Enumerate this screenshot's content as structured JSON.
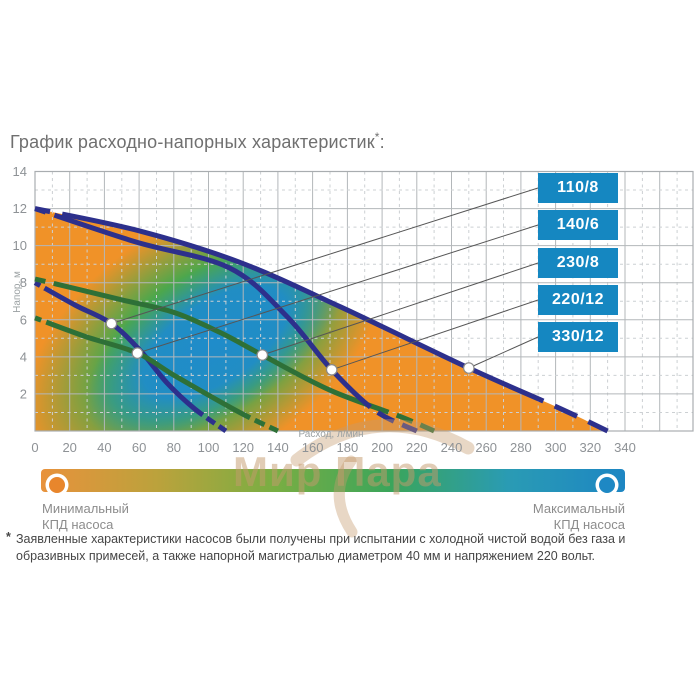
{
  "title": {
    "text": "График расходно-напорных характеристик",
    "sup": "*",
    "colon": ":"
  },
  "chart_data": {
    "type": "line",
    "xlabel": "Расход, л/мин",
    "ylabel": "Напор, м",
    "xlim": [
      0,
      380
    ],
    "ylim": [
      0,
      14
    ],
    "x_ticks": [
      0,
      20,
      40,
      60,
      80,
      100,
      120,
      140,
      160,
      180,
      200,
      220,
      240,
      260,
      280,
      300,
      320,
      340
    ],
    "y_ticks": [
      0,
      2,
      4,
      6,
      8,
      10,
      12,
      14
    ],
    "x_minor_step": 10,
    "y_minor_step": 1,
    "grid": "major solid, minor dashed",
    "legend_position": "right boxes with leader lines to marked points",
    "series": [
      {
        "name": "110/8",
        "color": "#2d308c",
        "points": [
          [
            0,
            8
          ],
          [
            23,
            6.8
          ],
          [
            44,
            5.8
          ],
          [
            61,
            4.3
          ],
          [
            76,
            2.6
          ],
          [
            92,
            1.2
          ],
          [
            110,
            0
          ]
        ],
        "marker": [
          44,
          5.8
        ]
      },
      {
        "name": "140/6",
        "color": "#2e7037",
        "points": [
          [
            0,
            6.1
          ],
          [
            29,
            5.1
          ],
          [
            59,
            4.2
          ],
          [
            82,
            2.9
          ],
          [
            118,
            1.0
          ],
          [
            140,
            0
          ]
        ],
        "marker": [
          59,
          4.2
        ]
      },
      {
        "name": "230/8",
        "color": "#2e7037",
        "points": [
          [
            0,
            8.2
          ],
          [
            49,
            7.1
          ],
          [
            80,
            6.4
          ],
          [
            107,
            5.3
          ],
          [
            131,
            4.1
          ],
          [
            170,
            2.2
          ],
          [
            210,
            0.8
          ],
          [
            230,
            0
          ]
        ],
        "marker": [
          131,
          4.1
        ]
      },
      {
        "name": "220/12",
        "color": "#2d308c",
        "points": [
          [
            0,
            12
          ],
          [
            58,
            10.2
          ],
          [
            112,
            8.8
          ],
          [
            145,
            6.2
          ],
          [
            171,
            3.3
          ],
          [
            196,
            1.1
          ],
          [
            220,
            0
          ]
        ],
        "marker": [
          171,
          3.3
        ]
      },
      {
        "name": "330/12",
        "color": "#2d308c",
        "envelope": true,
        "points": [
          [
            0,
            12
          ],
          [
            60,
            10.8
          ],
          [
            118,
            9.1
          ],
          [
            176,
            6.7
          ],
          [
            250,
            3.4
          ],
          [
            303,
            1.2
          ],
          [
            330,
            0
          ]
        ],
        "marker": [
          250,
          3.4
        ]
      }
    ]
  },
  "efficiency_bar": {
    "min_label": [
      "Минимальный",
      "КПД насоса"
    ],
    "max_label": [
      "Максимальный",
      "КПД насоса"
    ],
    "gradient": [
      "#e8923c",
      "#bba23c",
      "#79ae43",
      "#3aa55b",
      "#2a9bb4",
      "#1d86c3"
    ]
  },
  "watermark": {
    "text": "Мир Пара"
  },
  "footnote": {
    "marker": "*",
    "text": "Заявленные характеристики насосов были получены при испытании с холодной чистой водой без газа и образивных примесей, а также напорной магистралью диаметром 40 мм и напряжением 220 вольт."
  },
  "colors": {
    "badge": "#1587c1",
    "navy_curve": "#2d308c",
    "green_curve": "#2e7037",
    "fill_orange": "#f09228",
    "fill_green": "#44a84e",
    "fill_blue": "#1f8cca",
    "grid_major": "#b3b7ba",
    "grid_minor": "#ccd0d3",
    "border": "#a9adb0",
    "leader_line": "#565656",
    "marker_dot": "#ffffff",
    "circle_min": "#e8862c",
    "circle_max": "#1e88c4",
    "watermark": "#c59b6d"
  }
}
